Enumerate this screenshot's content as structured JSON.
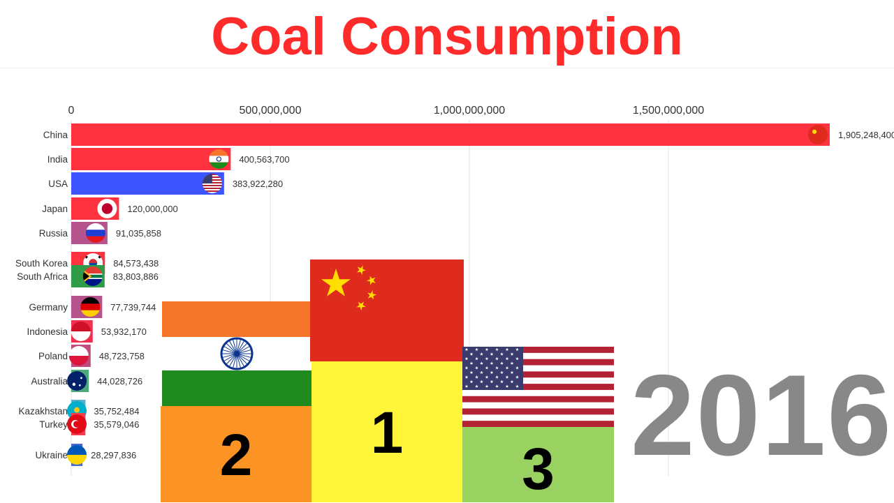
{
  "title": "Coal Consumption",
  "year": "2016",
  "colors": {
    "title": "#ff2a2a",
    "india_saffron": "#f5752a",
    "india_green": "#1f8a1d",
    "china_red": "#de2b1e",
    "china_star": "#ffde00",
    "usa_red": "#b22234",
    "usa_blue": "#3c3b6e"
  },
  "chart_data": {
    "type": "bar",
    "orientation": "horizontal",
    "categories": [
      "China",
      "India",
      "USA",
      "Japan",
      "Russia",
      "South Korea",
      "South Africa",
      "Germany",
      "Indonesia",
      "Poland",
      "Australia",
      "Kazakhstan",
      "Turkey",
      "Ukraine"
    ],
    "values": [
      1905248400,
      400563700,
      383922280,
      120000000,
      91035858,
      84573438,
      83803886,
      77739744,
      53932170,
      48723758,
      44028726,
      35752484,
      35579046,
      28297836
    ],
    "value_labels": [
      "1,905,248,400",
      "400,563,700",
      "383,922,280",
      "120,000,000",
      "91,035,858",
      "84,573,438",
      "83,803,886",
      "77,739,744",
      "53,932,170",
      "48,723,758",
      "44,028,726",
      "35,752,484",
      "35,579,046",
      "28,297,836"
    ],
    "bar_colors": [
      "#ff3340",
      "#ff3340",
      "#3d55ff",
      "#ff3340",
      "#b5548c",
      "#ff3340",
      "#2f9a47",
      "#b5548c",
      "#f0304e",
      "#c04c7d",
      "#4caa7a",
      "#55b0d0",
      "#f04050",
      "#4a68d0"
    ],
    "flags": [
      "china",
      "india",
      "usa",
      "japan",
      "russia",
      "south-korea",
      "south-africa",
      "germany",
      "indonesia",
      "poland",
      "australia",
      "kazakhstan",
      "turkey",
      "ukraine"
    ],
    "xaxis_ticks": [
      "0",
      "500,000,000",
      "1,000,000,000",
      "1,500,000,000"
    ],
    "xaxis_tick_values": [
      0,
      500000000,
      1000000000,
      1500000000
    ],
    "xlim": [
      0,
      1905248400
    ],
    "xlabel": "",
    "ylabel": "",
    "grid": true,
    "legend": "none"
  },
  "podium": {
    "places": [
      {
        "rank": "2",
        "country": "India",
        "color": "#fb9425"
      },
      {
        "rank": "1",
        "country": "China",
        "color": "#fff53b"
      },
      {
        "rank": "3",
        "country": "USA",
        "color": "#9ad262"
      }
    ]
  }
}
